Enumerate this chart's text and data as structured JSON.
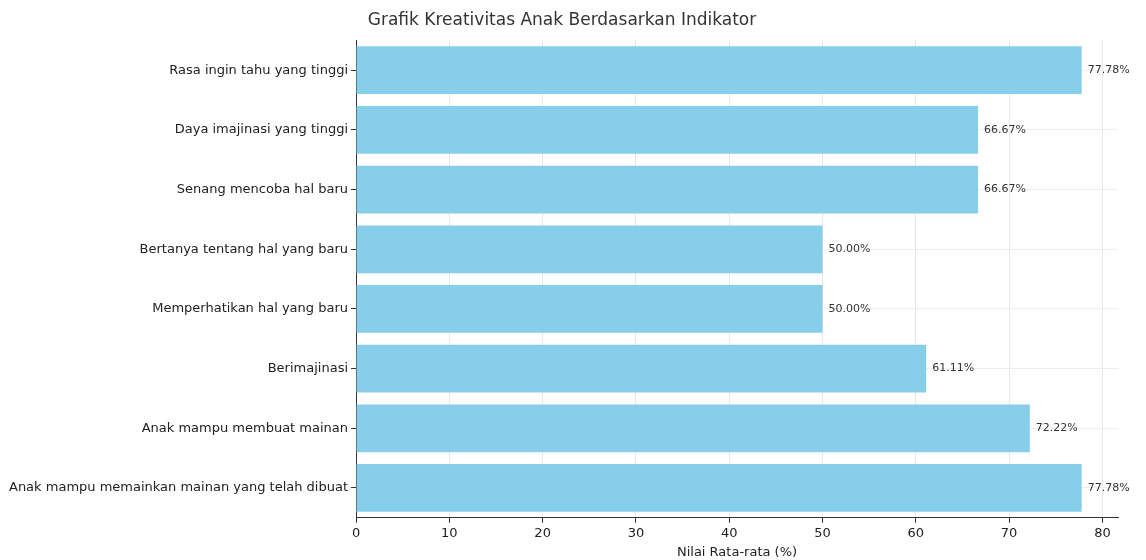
{
  "chart_data": {
    "type": "bar",
    "orientation": "horizontal",
    "title": "Grafik Kreativitas Anak Berdasarkan Indikator",
    "xlabel": "Nilai Rata-rata (%)",
    "categories": [
      "Rasa ingin tahu yang tinggi",
      "Daya imajinasi yang tinggi",
      "Senang mencoba hal baru",
      "Bertanya tentang hal yang baru",
      "Memperhatikan hal yang baru",
      "Berimajinasi",
      "Anak mampu membuat mainan",
      "Anak mampu memainkan mainan yang telah dibuat"
    ],
    "values": [
      77.78,
      66.67,
      66.67,
      50.0,
      50.0,
      61.11,
      72.22,
      77.78
    ],
    "value_labels": [
      "77.78%",
      "66.67%",
      "66.67%",
      "50.00%",
      "50.00%",
      "61.11%",
      "72.22%",
      "77.78%"
    ],
    "color": "#87ceeb",
    "xlim": [
      0,
      81.67
    ],
    "xticks": [
      0,
      10,
      20,
      30,
      40,
      50,
      60,
      70,
      80
    ],
    "grid": true
  }
}
